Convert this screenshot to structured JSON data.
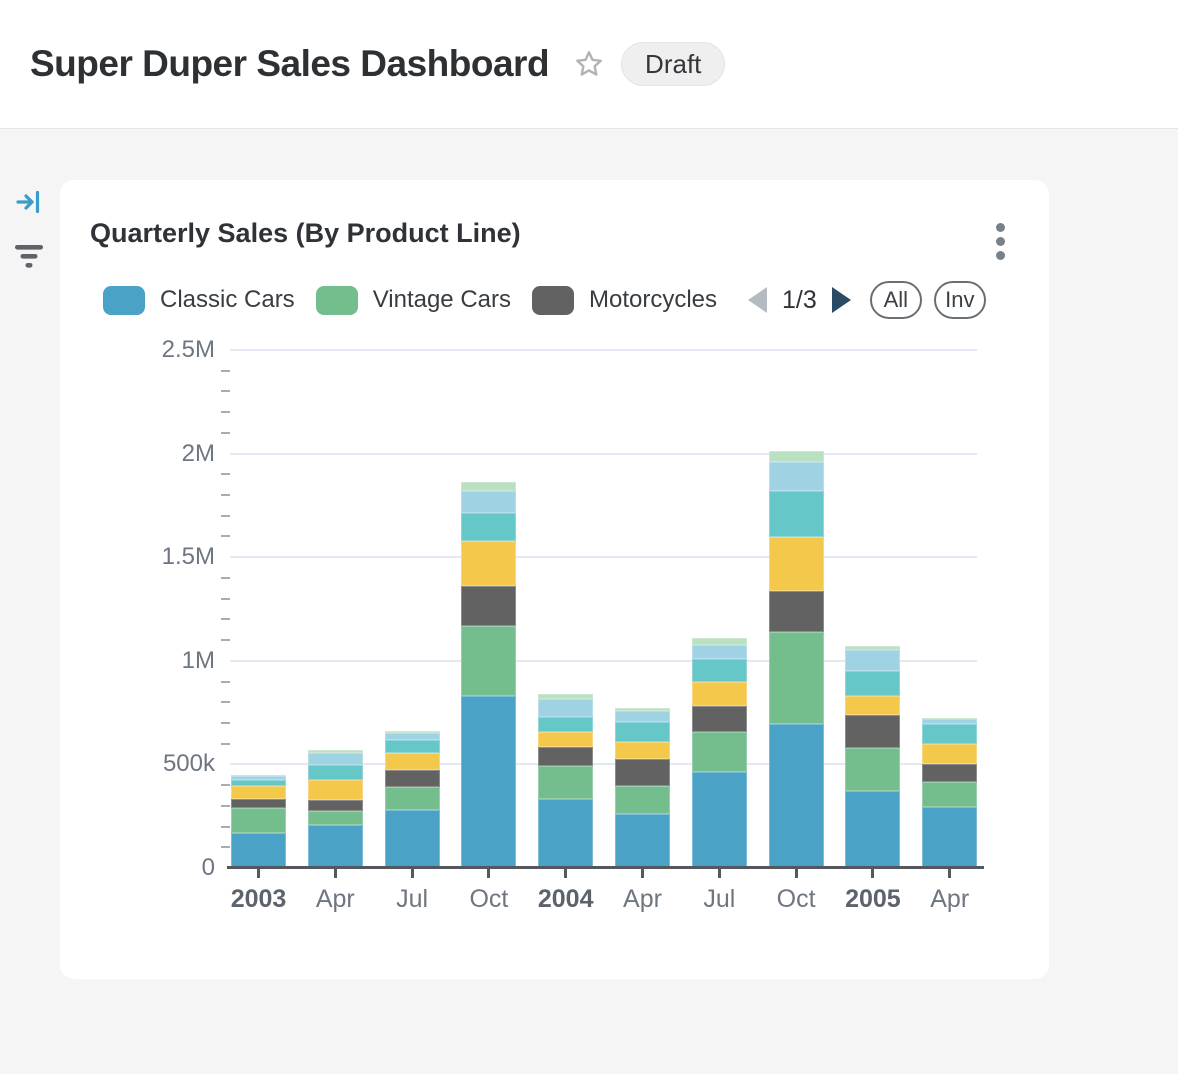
{
  "header": {
    "title": "Super Duper Sales Dashboard",
    "badge": "Draft"
  },
  "sidebar": {
    "icons": [
      "collapse-panel-icon",
      "filter-icon"
    ]
  },
  "card": {
    "title": "Quarterly Sales (By Product Line)",
    "menu_icon": "kebab-menu-icon",
    "legend": [
      {
        "label": "Classic Cars",
        "color": "#4aa3c6"
      },
      {
        "label": "Vintage Cars",
        "color": "#74bd8c"
      },
      {
        "label": "Motorcycles",
        "color": "#626262"
      }
    ],
    "pagination": {
      "page": "1/3",
      "prev_icon": "chevron-left-icon",
      "next_icon": "chevron-right-icon"
    },
    "buttons": {
      "all": "All",
      "inv": "Inv"
    }
  },
  "colors": {
    "page_background": "#f5f5f6",
    "card_background": "#ffffff",
    "gridline": "#e3e8f2",
    "axis": "#54585d",
    "accent_blue": "#3a9cc9"
  },
  "chart_data": {
    "type": "bar",
    "stacked": true,
    "title": "Quarterly Sales (By Product Line)",
    "legend_position": "top",
    "grid": true,
    "categories": [
      "2003",
      "Apr",
      "Jul",
      "Oct",
      "2004",
      "Apr",
      "Jul",
      "Oct",
      "2005",
      "Apr"
    ],
    "year_label_indexes": [
      0,
      4,
      8
    ],
    "ylim": [
      0,
      2500000
    ],
    "y_axis": {
      "ticks": [
        {
          "label": "2.5M",
          "value": 2500000
        },
        {
          "label": "2M",
          "value": 2000000
        },
        {
          "label": "1.5M",
          "value": 1500000
        },
        {
          "label": "1M",
          "value": 1000000
        },
        {
          "label": "500k",
          "value": 500000
        },
        {
          "label": "0",
          "value": 0
        }
      ],
      "minor_tick_step": 100000
    },
    "series": [
      {
        "name": "Classic Cars",
        "color": "#4aa3c6",
        "values": [
          167000,
          206000,
          281000,
          829000,
          335000,
          262000,
          463000,
          696000,
          371000,
          294000
        ]
      },
      {
        "name": "Vintage Cars",
        "color": "#74bd8c",
        "values": [
          123000,
          69000,
          110000,
          338000,
          159000,
          133000,
          193000,
          443000,
          208000,
          121000
        ]
      },
      {
        "name": "Motorcycles",
        "color": "#626262",
        "values": [
          45000,
          55000,
          83000,
          194000,
          89000,
          130000,
          125000,
          197000,
          161000,
          88000
        ]
      },
      {
        "name": "",
        "color": "#f4c94b",
        "values": [
          59000,
          93000,
          81000,
          217000,
          76000,
          81000,
          116000,
          264000,
          90000,
          97000
        ]
      },
      {
        "name": "",
        "color": "#66c7c9",
        "values": [
          29000,
          72000,
          64000,
          133000,
          73000,
          97000,
          111000,
          222000,
          119000,
          96000
        ]
      },
      {
        "name": "",
        "color": "#9fd2e3",
        "values": [
          20000,
          60000,
          32000,
          109000,
          85000,
          54000,
          69000,
          137000,
          101000,
          21000
        ]
      },
      {
        "name": "",
        "color": "#b9e0c1",
        "values": [
          7000,
          13000,
          10000,
          43000,
          23000,
          13000,
          34000,
          56000,
          21000,
          8000
        ]
      }
    ]
  }
}
